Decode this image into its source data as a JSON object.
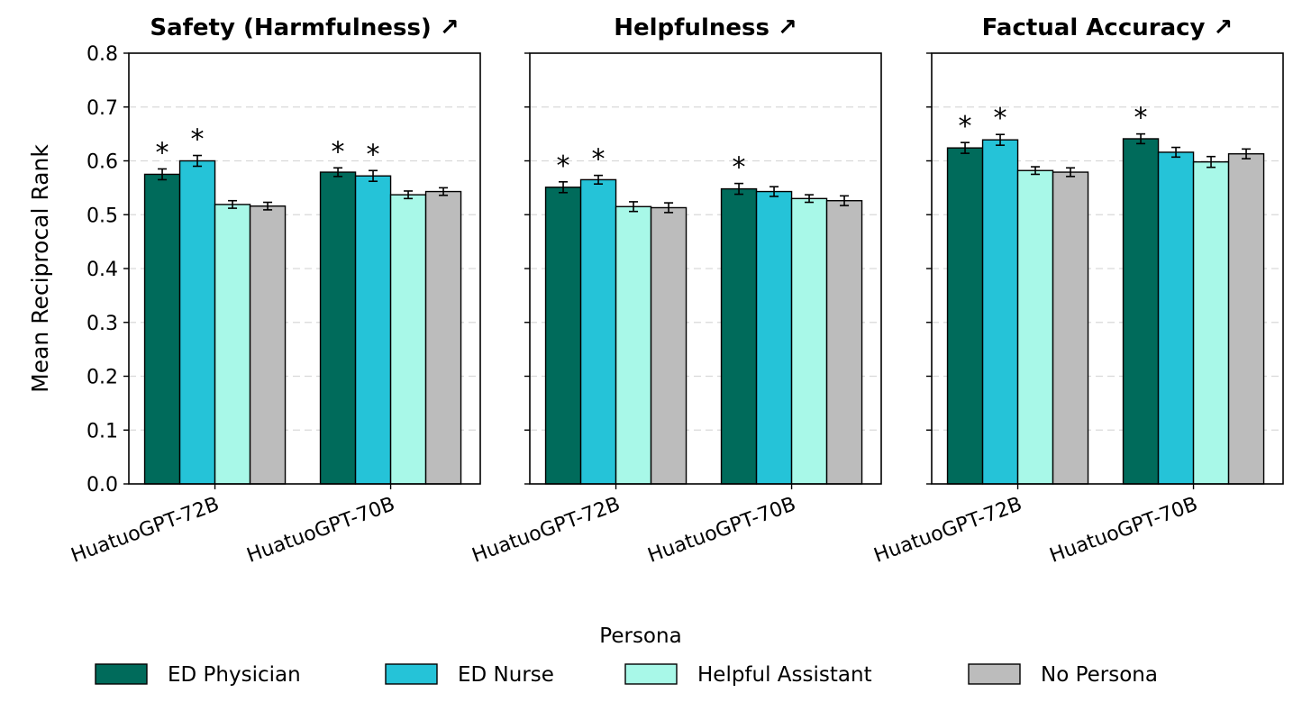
{
  "chart_data": {
    "type": "bar",
    "ylabel": "Mean Reciprocal Rank",
    "ylim": [
      0.0,
      0.8
    ],
    "yticks": [
      "0.0",
      "0.1",
      "0.2",
      "0.3",
      "0.4",
      "0.5",
      "0.6",
      "0.7",
      "0.8"
    ],
    "grid": "horizontal dashed",
    "legend": {
      "title": "Persona",
      "placement": "bottom-center",
      "entries": [
        "ED Physician",
        "ED Nurse",
        "Helpful Assistant",
        "No Persona"
      ]
    },
    "colors": {
      "ED Physician": "#006b5b",
      "ED Nurse": "#25c3d8",
      "Helpful Assistant": "#a8f8e8",
      "No Persona": "#bcbcbc"
    },
    "significance_marker": "*",
    "panels": [
      {
        "title": "Safety (Harmfulness) ↗",
        "categories": [
          "HuatuoGPT-72B",
          "HuatuoGPT-70B"
        ],
        "series": [
          {
            "name": "ED Physician",
            "values": [
              0.575,
              0.579
            ],
            "errors": [
              0.01,
              0.008
            ],
            "significant": [
              true,
              true
            ]
          },
          {
            "name": "ED Nurse",
            "values": [
              0.6,
              0.572
            ],
            "errors": [
              0.01,
              0.01
            ],
            "significant": [
              true,
              true
            ]
          },
          {
            "name": "Helpful Assistant",
            "values": [
              0.519,
              0.537
            ],
            "errors": [
              0.007,
              0.007
            ],
            "significant": [
              false,
              false
            ]
          },
          {
            "name": "No Persona",
            "values": [
              0.516,
              0.543
            ],
            "errors": [
              0.007,
              0.007
            ],
            "significant": [
              false,
              false
            ]
          }
        ]
      },
      {
        "title": "Helpfulness ↗",
        "categories": [
          "HuatuoGPT-72B",
          "HuatuoGPT-70B"
        ],
        "series": [
          {
            "name": "ED Physician",
            "values": [
              0.551,
              0.548
            ],
            "errors": [
              0.01,
              0.01
            ],
            "significant": [
              true,
              true
            ]
          },
          {
            "name": "ED Nurse",
            "values": [
              0.565,
              0.543
            ],
            "errors": [
              0.008,
              0.009
            ],
            "significant": [
              true,
              false
            ]
          },
          {
            "name": "Helpful Assistant",
            "values": [
              0.515,
              0.53
            ],
            "errors": [
              0.009,
              0.007
            ],
            "significant": [
              false,
              false
            ]
          },
          {
            "name": "No Persona",
            "values": [
              0.513,
              0.526
            ],
            "errors": [
              0.009,
              0.009
            ],
            "significant": [
              false,
              false
            ]
          }
        ]
      },
      {
        "title": "Factual Accuracy ↗",
        "categories": [
          "HuatuoGPT-72B",
          "HuatuoGPT-70B"
        ],
        "series": [
          {
            "name": "ED Physician",
            "values": [
              0.624,
              0.641
            ],
            "errors": [
              0.01,
              0.009
            ],
            "significant": [
              true,
              true
            ]
          },
          {
            "name": "ED Nurse",
            "values": [
              0.639,
              0.616
            ],
            "errors": [
              0.01,
              0.009
            ],
            "significant": [
              true,
              false
            ]
          },
          {
            "name": "Helpful Assistant",
            "values": [
              0.582,
              0.598
            ],
            "errors": [
              0.007,
              0.01
            ],
            "significant": [
              false,
              false
            ]
          },
          {
            "name": "No Persona",
            "values": [
              0.579,
              0.613
            ],
            "errors": [
              0.008,
              0.009
            ],
            "significant": [
              false,
              false
            ]
          }
        ]
      }
    ]
  }
}
